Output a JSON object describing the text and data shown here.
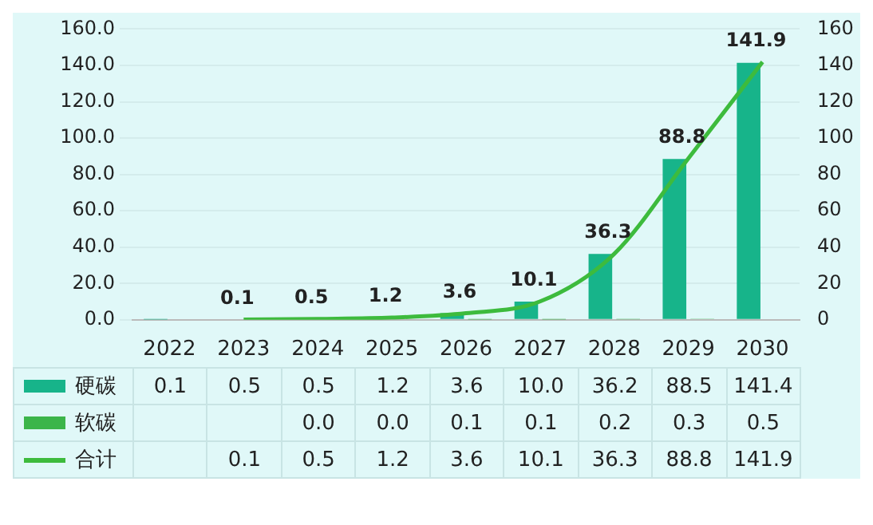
{
  "chart_data": {
    "type": "bar",
    "categories": [
      "2022",
      "2023",
      "2024",
      "2025",
      "2026",
      "2027",
      "2028",
      "2029",
      "2030"
    ],
    "series": [
      {
        "name": "硬碳",
        "color": "#17b48a",
        "values": [
          0.1,
          0.5,
          0.5,
          1.2,
          3.6,
          10.0,
          36.2,
          88.5,
          141.4
        ],
        "value_labels": [
          "0.1",
          "0.5",
          "0.5",
          "1.2",
          "3.6",
          "10.0",
          "36.2",
          "88.5",
          "141.4"
        ]
      },
      {
        "name": "软碳",
        "color": "#3bb54a",
        "values": [
          null,
          null,
          0.0,
          0.0,
          0.1,
          0.1,
          0.2,
          0.3,
          0.5
        ],
        "value_labels": [
          null,
          null,
          "0.0",
          "0.0",
          "0.1",
          "0.1",
          "0.2",
          "0.3",
          "0.5"
        ]
      },
      {
        "name": "合计",
        "type": "line",
        "axis": "y2",
        "color": "#3dbb3d",
        "marker": "none",
        "values": [
          null,
          0.1,
          0.5,
          1.2,
          3.6,
          10.1,
          36.3,
          88.8,
          141.9
        ],
        "value_labels": [
          null,
          "0.1",
          "0.5",
          "1.2",
          "3.6",
          "10.1",
          "36.3",
          "88.8",
          "141.9"
        ]
      }
    ],
    "ylim": [
      0,
      160
    ],
    "yticks": [
      {
        "value": 0,
        "label": "0.0"
      },
      {
        "value": 20,
        "label": "20.0"
      },
      {
        "value": 40,
        "label": "40.0"
      },
      {
        "value": 60,
        "label": "60.0"
      },
      {
        "value": 80,
        "label": "80.0"
      },
      {
        "value": 100,
        "label": "100.0"
      },
      {
        "value": 120,
        "label": "120.0"
      },
      {
        "value": 140,
        "label": "140.0"
      },
      {
        "value": 160,
        "label": "160.0"
      }
    ],
    "y2lim": [
      0,
      160
    ],
    "y2ticks": [
      0,
      20,
      40,
      60,
      80,
      100,
      120,
      140,
      160
    ],
    "grid": "y",
    "legend": "bottom"
  }
}
